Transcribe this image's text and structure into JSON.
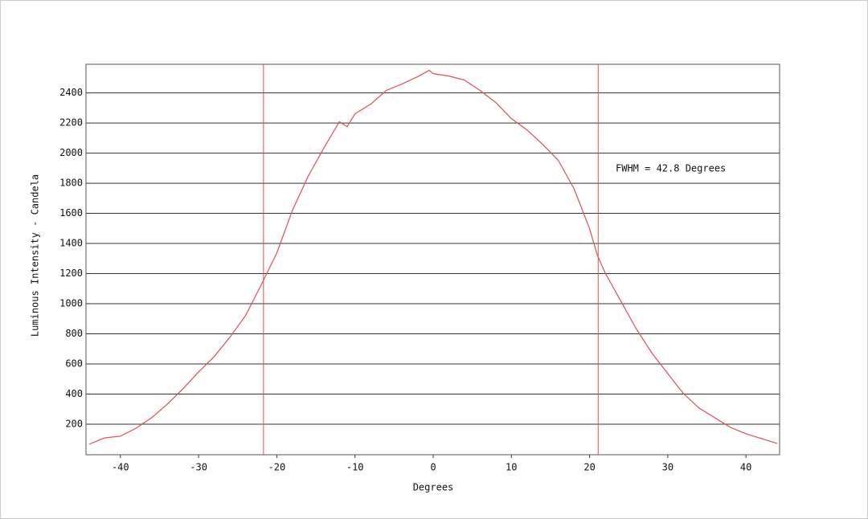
{
  "chart_data": {
    "type": "line",
    "x_label": "Degrees",
    "y_label": "Luminous Intensity - Candela",
    "annotation": "FWHM = 42.8 Degrees",
    "fwhm_lines": [
      -21.7,
      21.1
    ],
    "xlim": [
      -44.4,
      44.3
    ],
    "ylim": [
      -3,
      2590
    ],
    "xticks": [
      -40,
      -30,
      -20,
      -10,
      0,
      10,
      20,
      30,
      40
    ],
    "yticks": [
      200,
      400,
      600,
      800,
      1000,
      1200,
      1400,
      1600,
      1800,
      2000,
      2200,
      2400
    ],
    "grid": true,
    "series": [
      {
        "color": "#e05050",
        "x": [
          -44,
          -42,
          -40,
          -38,
          -36,
          -34,
          -32,
          -30,
          -28,
          -26,
          -24,
          -22,
          -20,
          -18,
          -16,
          -14,
          -12,
          -11,
          -10,
          -8,
          -6,
          -4,
          -2,
          -0.5,
          0,
          2,
          4,
          6,
          8,
          10,
          12,
          14,
          16,
          18,
          20,
          21,
          22,
          24,
          26,
          28,
          30,
          32,
          34,
          36,
          38,
          40,
          42,
          44
        ],
        "values": [
          67,
          109,
          120,
          173,
          243,
          333,
          435,
          547,
          649,
          777,
          921,
          1124,
          1337,
          1620,
          1845,
          2032,
          2208,
          2176,
          2261,
          2325,
          2416,
          2459,
          2507,
          2550,
          2528,
          2512,
          2485,
          2416,
          2336,
          2229,
          2154,
          2058,
          1952,
          1765,
          1498,
          1321,
          1204,
          1017,
          830,
          670,
          536,
          403,
          307,
          243,
          179,
          136,
          104,
          72
        ]
      }
    ]
  }
}
